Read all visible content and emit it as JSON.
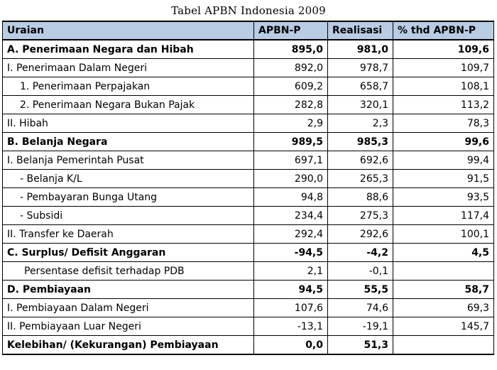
{
  "title": "Tabel APBN Indonesia 2009",
  "headers": [
    "Uraian",
    "APBN-P",
    "Realisasi",
    "% thd APBN-P"
  ],
  "rows": [
    {
      "label": "A. Penerimaan Negara dan Hibah",
      "apbn": "895,0",
      "realisasi": "981,0",
      "pct": "109,6"
    },
    {
      "label": "I. Penerimaan Dalam Negeri",
      "apbn": "892,0",
      "realisasi": "978,7",
      "pct": "109,7"
    },
    {
      "label": "1. Penerimaan Perpajakan",
      "apbn": "609,2",
      "realisasi": "658,7",
      "pct": "108,1"
    },
    {
      "label": "2. Penerimaan Negara Bukan Pajak",
      "apbn": "282,8",
      "realisasi": "320,1",
      "pct": "113,2"
    },
    {
      "label": "II. Hibah",
      "apbn": "2,9",
      "realisasi": "2,3",
      "pct": "78,3"
    },
    {
      "label": "B. Belanja Negara",
      "apbn": "989,5",
      "realisasi": "985,3",
      "pct": "99,6"
    },
    {
      "label": "I. Belanja Pemerintah Pusat",
      "apbn": "697,1",
      "realisasi": "692,6",
      "pct": "99,4"
    },
    {
      "label": "- Belanja K/L",
      "apbn": "290,0",
      "realisasi": "265,3",
      "pct": "91,5"
    },
    {
      "label": "- Pembayaran Bunga Utang",
      "apbn": "94,8",
      "realisasi": "88,6",
      "pct": "93,5"
    },
    {
      "label": "- Subsidi",
      "apbn": "234,4",
      "realisasi": "275,3",
      "pct": "117,4"
    },
    {
      "label": "II. Transfer ke Daerah",
      "apbn": "292,4",
      "realisasi": "292,6",
      "pct": "100,1"
    },
    {
      "label": "C. Surplus/ Defisit Anggaran",
      "apbn": "-94,5",
      "realisasi": "-4,2",
      "pct": "4,5"
    },
    {
      "label": "Persentase defisit terhadap PDB",
      "apbn": "2,1",
      "realisasi": "-0,1",
      "pct": ""
    },
    {
      "label": "D. Pembiayaan",
      "apbn": "94,5",
      "realisasi": "55,5",
      "pct": "58,7"
    },
    {
      "label": "I. Pembiayaan Dalam Negeri",
      "apbn": "107,6",
      "realisasi": "74,6",
      "pct": "69,3"
    },
    {
      "label": "II. Pembiayaan Luar Negeri",
      "apbn": "-13,1",
      "realisasi": "-19,1",
      "pct": "145,7"
    },
    {
      "label": "Kelebihan/ (Kekurangan) Pembiayaan",
      "apbn": "0,0",
      "realisasi": "51,3",
      "pct": ""
    }
  ]
}
